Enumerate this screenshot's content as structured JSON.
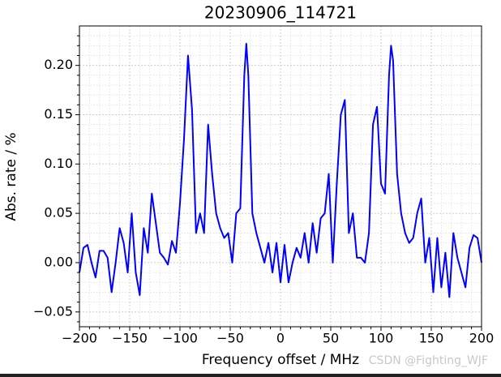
{
  "chart_data": {
    "type": "line",
    "title": "20230906_114721",
    "x_label": "Frequency offset / MHz",
    "y_label": "Abs. rate / %",
    "annotation": "CSDN @Fighting_WJF",
    "x": [
      -200,
      -196,
      -192,
      -188,
      -184,
      -180,
      -176,
      -172,
      -168,
      -164,
      -160,
      -156,
      -152,
      -148,
      -144,
      -140,
      -136,
      -132,
      -128,
      -124,
      -120,
      -116,
      -112,
      -108,
      -104,
      -100,
      -96,
      -92,
      -88,
      -84,
      -80,
      -76,
      -72,
      -68,
      -64,
      -60,
      -56,
      -52,
      -48,
      -44,
      -40,
      -36,
      -34,
      -32,
      -28,
      -24,
      -20,
      -16,
      -12,
      -8,
      -4,
      0,
      4,
      8,
      12,
      16,
      20,
      24,
      28,
      32,
      36,
      40,
      44,
      48,
      52,
      56,
      60,
      64,
      68,
      72,
      76,
      80,
      84,
      88,
      92,
      96,
      100,
      104,
      108,
      110,
      112,
      116,
      120,
      124,
      128,
      132,
      136,
      140,
      144,
      148,
      152,
      156,
      160,
      164,
      168,
      172,
      176,
      180,
      184,
      188,
      192,
      196,
      200
    ],
    "series": [
      {
        "name": "Abs. rate",
        "color": "#0000ff",
        "values": [
          -0.01,
          0.015,
          0.018,
          0.0,
          -0.015,
          0.012,
          0.012,
          0.005,
          -0.03,
          0.0,
          0.035,
          0.02,
          -0.01,
          0.05,
          -0.01,
          -0.033,
          0.035,
          0.01,
          0.07,
          0.04,
          0.01,
          0.005,
          -0.002,
          0.022,
          0.01,
          0.06,
          0.125,
          0.21,
          0.155,
          0.03,
          0.05,
          0.03,
          0.14,
          0.09,
          0.05,
          0.035,
          0.025,
          0.03,
          0.0,
          0.05,
          0.055,
          0.19,
          0.222,
          0.19,
          0.05,
          0.03,
          0.015,
          0.0,
          0.02,
          -0.01,
          0.02,
          -0.02,
          0.018,
          -0.02,
          0.0,
          0.015,
          0.005,
          0.03,
          0.0,
          0.04,
          0.01,
          0.045,
          0.05,
          0.09,
          0.0,
          0.08,
          0.15,
          0.165,
          0.03,
          0.05,
          0.005,
          0.005,
          0.0,
          0.03,
          0.14,
          0.158,
          0.08,
          0.07,
          0.19,
          0.22,
          0.205,
          0.09,
          0.05,
          0.03,
          0.02,
          0.025,
          0.05,
          0.065,
          0.0,
          0.025,
          -0.03,
          0.025,
          -0.025,
          0.01,
          -0.035,
          0.03,
          0.005,
          -0.01,
          -0.025,
          0.015,
          0.028,
          0.025,
          0.0
        ]
      }
    ],
    "xlim": [
      -200,
      200
    ],
    "ylim": [
      -0.065,
      0.24
    ],
    "xticks": [
      {
        "value": -200,
        "label": "−200"
      },
      {
        "value": -150,
        "label": "−150"
      },
      {
        "value": -100,
        "label": "−100"
      },
      {
        "value": -50,
        "label": "−50"
      },
      0,
      50,
      100,
      150,
      200
    ],
    "yticks": [
      {
        "value": -0.05,
        "label": "−0.05"
      },
      {
        "value": 0,
        "label": "0.00"
      },
      {
        "value": 0.05,
        "label": "0.05"
      },
      {
        "value": 0.1,
        "label": "0.10"
      },
      {
        "value": 0.15,
        "label": "0.15"
      },
      {
        "value": 0.2,
        "label": "0.20"
      }
    ],
    "xminorticks": [
      -190,
      -180,
      -170,
      -160,
      -140,
      -130,
      -120,
      -110,
      -90,
      -80,
      -70,
      -60,
      -40,
      -30,
      -20,
      -10,
      10,
      20,
      30,
      40,
      60,
      70,
      80,
      90,
      110,
      120,
      130,
      140,
      160,
      170,
      180,
      190
    ],
    "yminorticks": [
      -0.06,
      -0.04,
      -0.03,
      -0.02,
      -0.01,
      0.01,
      0.02,
      0.03,
      0.04,
      0.06,
      0.07,
      0.08,
      0.09,
      0.11,
      0.12,
      0.13,
      0.14,
      0.16,
      0.17,
      0.18,
      0.19,
      0.21,
      0.22,
      0.23
    ],
    "grid": true
  }
}
